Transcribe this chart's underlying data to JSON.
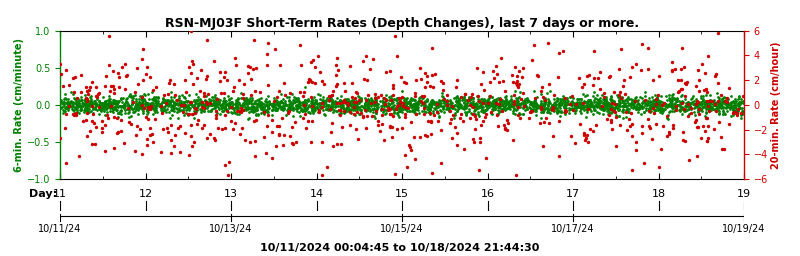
{
  "title": "RSN-MJ03F Short-Term Rates (Depth Changes), last 7 days or more.",
  "title_fontsize": 9,
  "ylabel_left": "6-min. Rate (cm/minute)",
  "ylabel_right": "20-min. Rate (cm/hour)",
  "ylabel_color_left": "#008000",
  "ylabel_color_right": "#cc0000",
  "xlabel_day": "Day:",
  "day_ticks": [
    11,
    12,
    13,
    14,
    15,
    16,
    17,
    18,
    19
  ],
  "date_ticks": [
    "10/11/24",
    "10/13/24",
    "10/15/24",
    "10/17/24",
    "10/19/24"
  ],
  "date_tick_positions": [
    11,
    13,
    15,
    17,
    19
  ],
  "subtitle": "10/11/2024 00:04:45 to 10/18/2024 21:44:30",
  "subtitle_fontsize": 8,
  "xlim": [
    11,
    19
  ],
  "ylim_left": [
    -1.0,
    1.0
  ],
  "ylim_right": [
    -6,
    6
  ],
  "yticks_left": [
    -1.0,
    -0.5,
    0.0,
    0.5,
    1.0
  ],
  "yticks_right": [
    -6,
    -4,
    -2,
    0,
    2,
    4,
    6
  ],
  "green_dot_color": "#008000",
  "red_dot_color": "#cc0000",
  "dot_size_green": 4,
  "dot_size_red": 6,
  "background_color": "#ffffff",
  "n_green_points": 3000,
  "n_red_points": 800,
  "green_std": 0.06,
  "red_std": 0.35,
  "seed": 42
}
